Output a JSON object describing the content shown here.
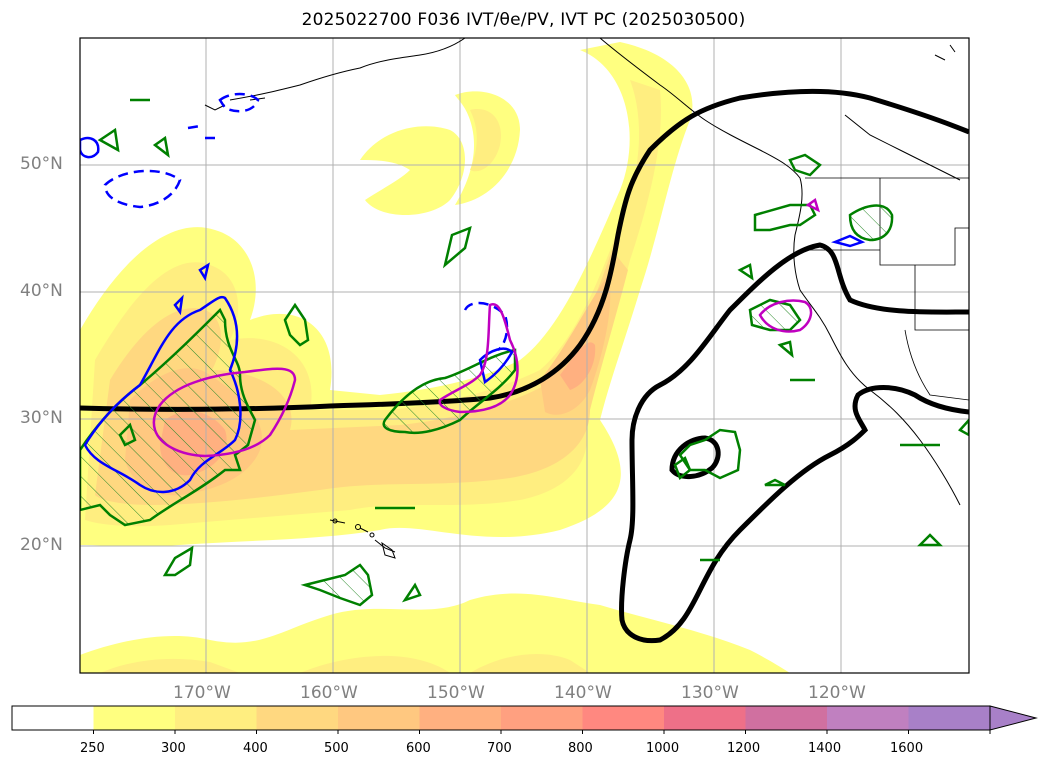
{
  "title": "2025022700 F036 IVT/θe/PV, IVT PC (2025030500)",
  "latitude_labels": [
    "50°N",
    "40°N",
    "30°N",
    "20°N"
  ],
  "longitude_labels": [
    "170°W",
    "160°W",
    "150°W",
    "140°W",
    "130°W",
    "120°W"
  ],
  "colorbar": {
    "ticks": [
      "250",
      "300",
      "400",
      "500",
      "600",
      "700",
      "800",
      "1000",
      "1200",
      "1400",
      "1600"
    ],
    "colors": [
      "#ffffff",
      "#ffff80",
      "#ffee80",
      "#ffd880",
      "#ffc880",
      "#ffb080",
      "#ffa080",
      "#ff8880",
      "#ee7088",
      "#d070a0",
      "#c080c0",
      "#a880c8"
    ],
    "extend": "max"
  },
  "layers": {
    "ivt_fill": "yellow-orange filled contours",
    "ivt_pc_contour": "#000000",
    "theta_e_contour": "#008000",
    "pv_contour_solid": "#0000ff",
    "pv_contour_dashed": "#0000ff",
    "magenta_contour": "#c000c0"
  }
}
